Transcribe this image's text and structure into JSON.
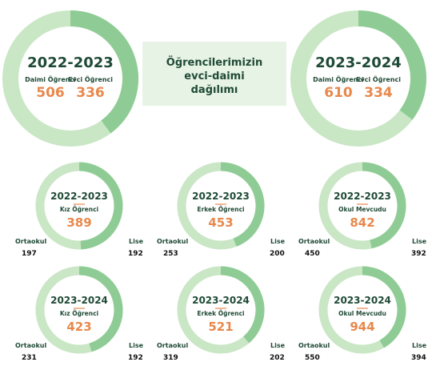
{
  "colors": {
    "dark": "#8fcc95",
    "light": "#c9e6c5",
    "accent": "#e8884c",
    "text": "#1f4a36",
    "band": "#e7f3e4"
  },
  "center": {
    "lines": [
      "Öğrencilerimizin",
      "evci-daimi",
      "dağılımı"
    ]
  },
  "chart_data": [
    {
      "type": "pie",
      "id": "donut-2022-boarding",
      "title": "2022-2023",
      "categories": [
        "Daimi Öğrenci",
        "Evci Öğrenci"
      ],
      "values": [
        506,
        336
      ],
      "style": "big"
    },
    {
      "type": "pie",
      "id": "donut-2023-boarding",
      "title": "2023-2024",
      "categories": [
        "Daimi Öğrenci",
        "Evci Öğrenci"
      ],
      "values": [
        610,
        334
      ],
      "style": "big"
    },
    {
      "type": "pie",
      "id": "donut-2022-girls",
      "title": "2022-2023",
      "label": "Kız Öğrenci",
      "total": 389,
      "categories": [
        "Ortaokul",
        "Lise"
      ],
      "values": [
        197,
        192
      ],
      "style": "small"
    },
    {
      "type": "pie",
      "id": "donut-2022-boys",
      "title": "2022-2023",
      "label": "Erkek Öğrenci",
      "total": 453,
      "categories": [
        "Ortaokul",
        "Lise"
      ],
      "values": [
        253,
        200
      ],
      "style": "small"
    },
    {
      "type": "pie",
      "id": "donut-2022-school",
      "title": "2022-2023",
      "label": "Okul Mevcudu",
      "total": 842,
      "categories": [
        "Ortaokul",
        "Lise"
      ],
      "values": [
        450,
        392
      ],
      "style": "small"
    },
    {
      "type": "pie",
      "id": "donut-2023-girls",
      "title": "2023-2024",
      "label": "Kız Öğrenci",
      "total": 423,
      "categories": [
        "Ortaokul",
        "Lise"
      ],
      "values": [
        231,
        192
      ],
      "style": "small"
    },
    {
      "type": "pie",
      "id": "donut-2023-boys",
      "title": "2023-2024",
      "label": "Erkek Öğrenci",
      "total": 521,
      "categories": [
        "Ortaokul",
        "Lise"
      ],
      "values": [
        319,
        202
      ],
      "style": "small"
    },
    {
      "type": "pie",
      "id": "donut-2023-school",
      "title": "2023-2024",
      "label": "Okul Mevcudu",
      "total": 944,
      "categories": [
        "Ortaokul",
        "Lise"
      ],
      "values": [
        550,
        394
      ],
      "style": "small"
    }
  ]
}
